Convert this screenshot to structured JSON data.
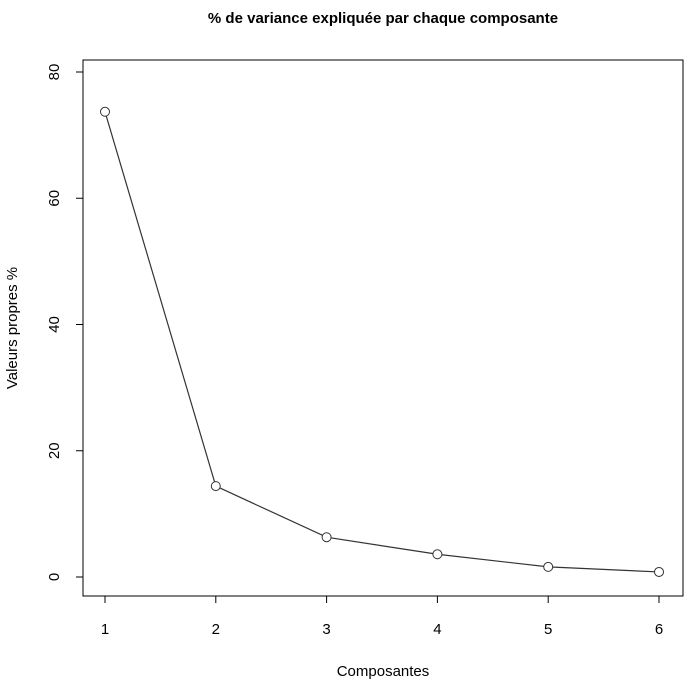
{
  "chart_data": {
    "type": "line",
    "title": "% de variance expliquée par chaque composante",
    "xlabel": "Composantes",
    "ylabel": "Valeurs propres %",
    "x": [
      1,
      2,
      3,
      4,
      5,
      6
    ],
    "xticks": [
      "1",
      "2",
      "3",
      "4",
      "5",
      "6"
    ],
    "yticks": [
      "0",
      "20",
      "40",
      "60",
      "80"
    ],
    "ylim": [
      0,
      80
    ],
    "series": [
      {
        "values": [
          73.7,
          14.4,
          6.3,
          3.6,
          1.6,
          0.8
        ]
      }
    ],
    "markers": "open-circle",
    "grid": false,
    "colors": {
      "line": "#333333",
      "marker_stroke": "#333333",
      "marker_fill": "#ffffff",
      "frame": "#000000"
    }
  }
}
